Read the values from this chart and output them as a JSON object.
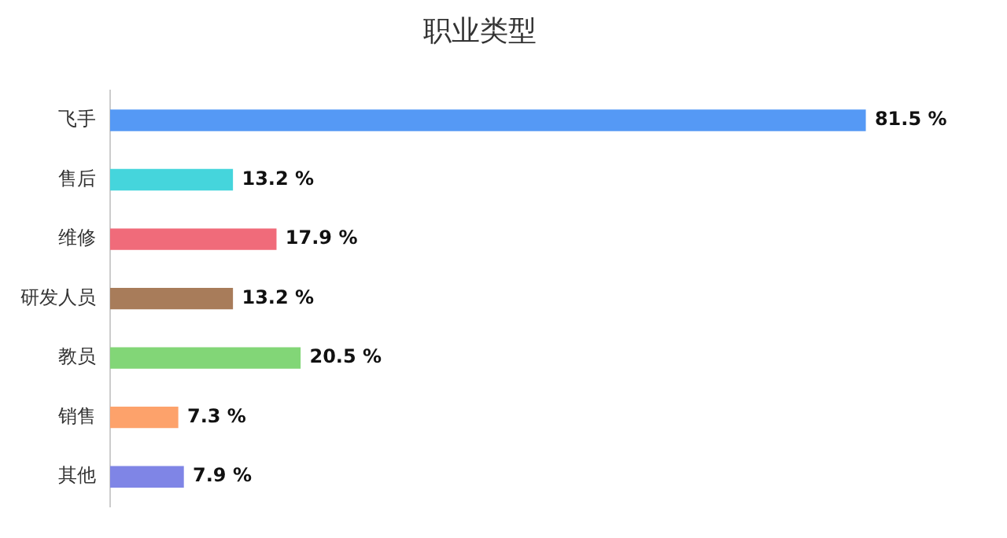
{
  "chart_data": {
    "type": "bar",
    "title": "职业类型",
    "orientation": "horizontal",
    "categories": [
      "飞手",
      "售后",
      "维修",
      "研发人员",
      "教员",
      "销售",
      "其他"
    ],
    "values": [
      81.5,
      13.2,
      17.9,
      13.2,
      20.5,
      7.3,
      7.9
    ],
    "colors": [
      "#5599f5",
      "#45d5dc",
      "#f06b7a",
      "#a87c5a",
      "#82d677",
      "#fda26b",
      "#7f85e6"
    ],
    "value_labels": [
      "81.5 %",
      "13.2 %",
      "17.9 %",
      "13.2 %",
      "20.5 %",
      "7.3 %",
      "7.9 %"
    ],
    "grid": false,
    "legend": false,
    "tick_labels": "y"
  }
}
